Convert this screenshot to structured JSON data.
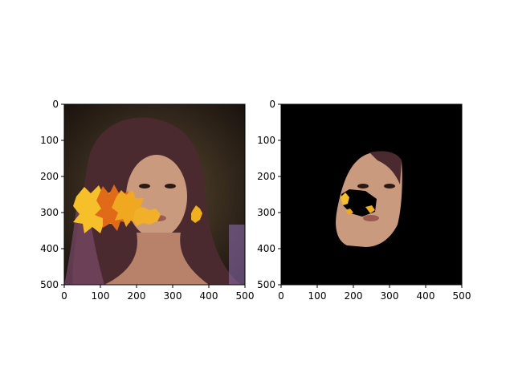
{
  "chart_data": [
    {
      "type": "image",
      "title": "",
      "xlabel": "",
      "ylabel": "",
      "xlim": [
        0,
        500
      ],
      "ylim": [
        500,
        0
      ],
      "xticks": [
        0,
        100,
        200,
        300,
        400,
        500
      ],
      "yticks": [
        0,
        100,
        200,
        300,
        400,
        500
      ],
      "content": "photo-with-leaves"
    },
    {
      "type": "image",
      "title": "",
      "xlabel": "",
      "ylabel": "",
      "xlim": [
        0,
        500
      ],
      "ylim": [
        500,
        0
      ],
      "xticks": [
        0,
        100,
        200,
        300,
        400,
        500
      ],
      "yticks": [
        0,
        100,
        200,
        300,
        400,
        500
      ],
      "content": "masked-face"
    }
  ],
  "colors": {
    "background": "#ffffff",
    "mask_background": "#000000",
    "leaf_orange": "#e8961a",
    "leaf_yellow": "#f5c02a",
    "skin": "#c99a7d",
    "hair": "#4a2a2e"
  }
}
